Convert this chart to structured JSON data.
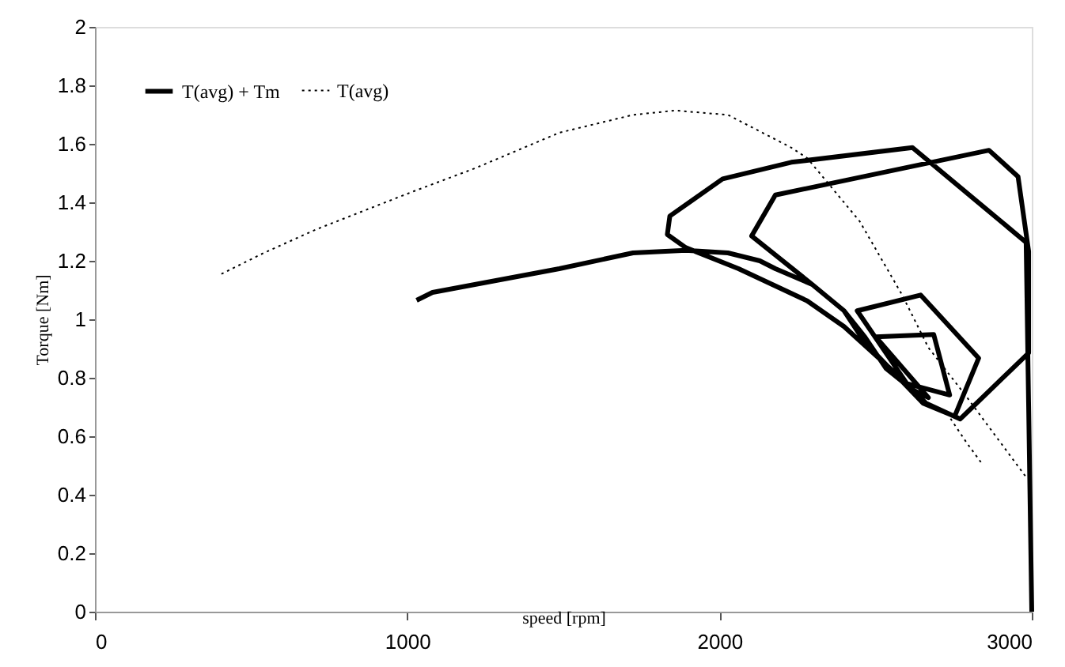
{
  "chart_data": {
    "type": "line",
    "xlabel": "speed [rpm]",
    "ylabel": "Torque [Nm]",
    "xlim": [
      0,
      3000
    ],
    "xticks": [
      0,
      1000,
      2000,
      3000
    ],
    "ylim": [
      0,
      2
    ],
    "yticks": [
      0,
      0.2,
      0.4,
      0.6,
      0.8,
      1,
      1.2,
      1.4,
      1.6,
      1.8,
      2
    ],
    "grid": false,
    "legend": "top left",
    "marker": "none",
    "series": [
      {
        "name": "T(avg) + Tm",
        "color": "#000000",
        "line_style": "solid",
        "x": [
          1030,
          1081,
          1487,
          1723,
          1892,
          2027,
          2129,
          2179,
          2297,
          2399,
          2466,
          2534,
          2618,
          2669,
          2500,
          2686,
          2737,
          2600,
          2441,
          2644,
          2830,
          2753,
          2652,
          2466,
          2399,
          2297,
          2103,
          2179,
          2863,
          2956,
          2990,
          2990,
          2771,
          2661,
          2600,
          2399,
          2281,
          2061,
          1892,
          1833,
          1841,
          2010,
          2230,
          2618,
          2982,
          3000
        ],
        "values": [
          1.065,
          1.092,
          1.173,
          1.227,
          1.236,
          1.227,
          1.2,
          1.173,
          1.119,
          1.029,
          0.939,
          0.831,
          0.759,
          0.732,
          0.94,
          0.948,
          0.741,
          0.78,
          1.029,
          1.083,
          0.867,
          0.668,
          0.713,
          0.92,
          1.029,
          1.119,
          1.285,
          1.425,
          1.578,
          1.488,
          1.232,
          0.885,
          0.659,
          0.713,
          0.78,
          0.975,
          1.063,
          1.173,
          1.245,
          1.29,
          1.353,
          1.48,
          1.537,
          1.587,
          1.263,
          0
        ]
      },
      {
        "name": "T(avg)",
        "color": "#000000",
        "line_style": "dotted",
        "x": [
          405,
          541,
          710,
          1014,
          1216,
          1487,
          1723,
          1858,
          2027,
          2230,
          2281,
          2449,
          2585,
          2669,
          2787,
          2982,
          2900,
          2740,
          2790,
          2838
        ],
        "values": [
          1.155,
          1.227,
          1.308,
          1.435,
          1.516,
          1.638,
          1.699,
          1.714,
          1.699,
          1.587,
          1.551,
          1.335,
          1.083,
          0.903,
          0.741,
          0.46,
          null,
          0.66,
          0.58,
          0.51
        ]
      }
    ]
  }
}
